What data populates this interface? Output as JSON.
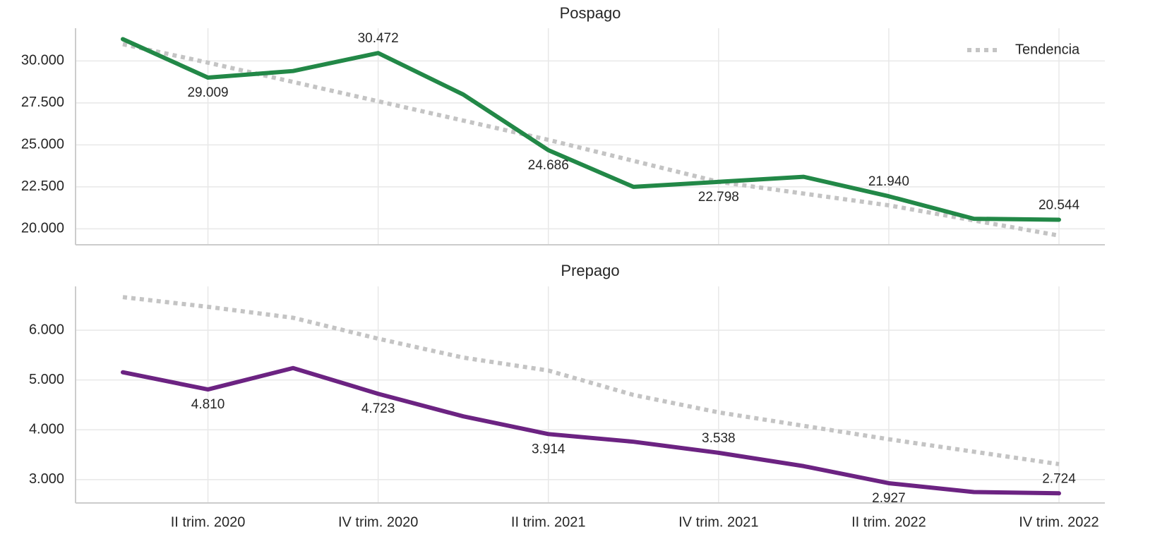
{
  "chart_data": [
    {
      "type": "line",
      "title": "Pospago",
      "series": [
        {
          "color": "#228847",
          "values": [
            31300,
            29009,
            29400,
            30472,
            28000,
            24686,
            22500,
            22798,
            23100,
            21940,
            20600,
            20544
          ],
          "value_labels": [
            null,
            "29.009",
            null,
            "30.472",
            null,
            "24.686",
            null,
            "22.798",
            null,
            "21.940",
            null,
            "20.544"
          ]
        },
        {
          "name": "Tendencia",
          "color": "#c4c4c4",
          "dash": "dotted",
          "values": [
            31000,
            29900,
            28750,
            27600,
            26450,
            25300,
            24050,
            22800,
            22100,
            21400,
            20500,
            19600
          ]
        }
      ],
      "ylim": [
        19050,
        31950
      ],
      "yticks": [
        {
          "value": 20000,
          "label": "20.000"
        },
        {
          "value": 22500,
          "label": "22.500"
        },
        {
          "value": 25000,
          "label": "25.000"
        },
        {
          "value": 27500,
          "label": "27.500"
        },
        {
          "value": 30000,
          "label": "30.000"
        }
      ],
      "grid": true,
      "legend": "upper right"
    },
    {
      "type": "line",
      "title": "Prepago",
      "categories": [
        null,
        "II trim. 2020",
        null,
        "IV trim. 2020",
        null,
        "II trim. 2021",
        null,
        "IV trim. 2021",
        null,
        "II trim. 2022",
        null,
        "IV trim. 2022"
      ],
      "series": [
        {
          "color": "#6c2382",
          "values": [
            5155,
            4810,
            5240,
            4723,
            4270,
            3914,
            3760,
            3538,
            3270,
            2927,
            2750,
            2724
          ],
          "value_labels": [
            null,
            "4.810",
            null,
            "4.723",
            null,
            "3.914",
            null,
            "3.538",
            null,
            "2.927",
            null,
            "2.724"
          ]
        },
        {
          "color": "#c4c4c4",
          "dash": "dotted",
          "values": [
            6665,
            6470,
            6250,
            5830,
            5450,
            5190,
            4700,
            4350,
            4080,
            3810,
            3560,
            3310
          ]
        }
      ],
      "ylim": [
        2530,
        6880
      ],
      "yticks": [
        {
          "value": 3000,
          "label": "3.000"
        },
        {
          "value": 4000,
          "label": "4.000"
        },
        {
          "value": 5000,
          "label": "5.000"
        },
        {
          "value": 6000,
          "label": "6.000"
        }
      ],
      "grid": true
    }
  ]
}
